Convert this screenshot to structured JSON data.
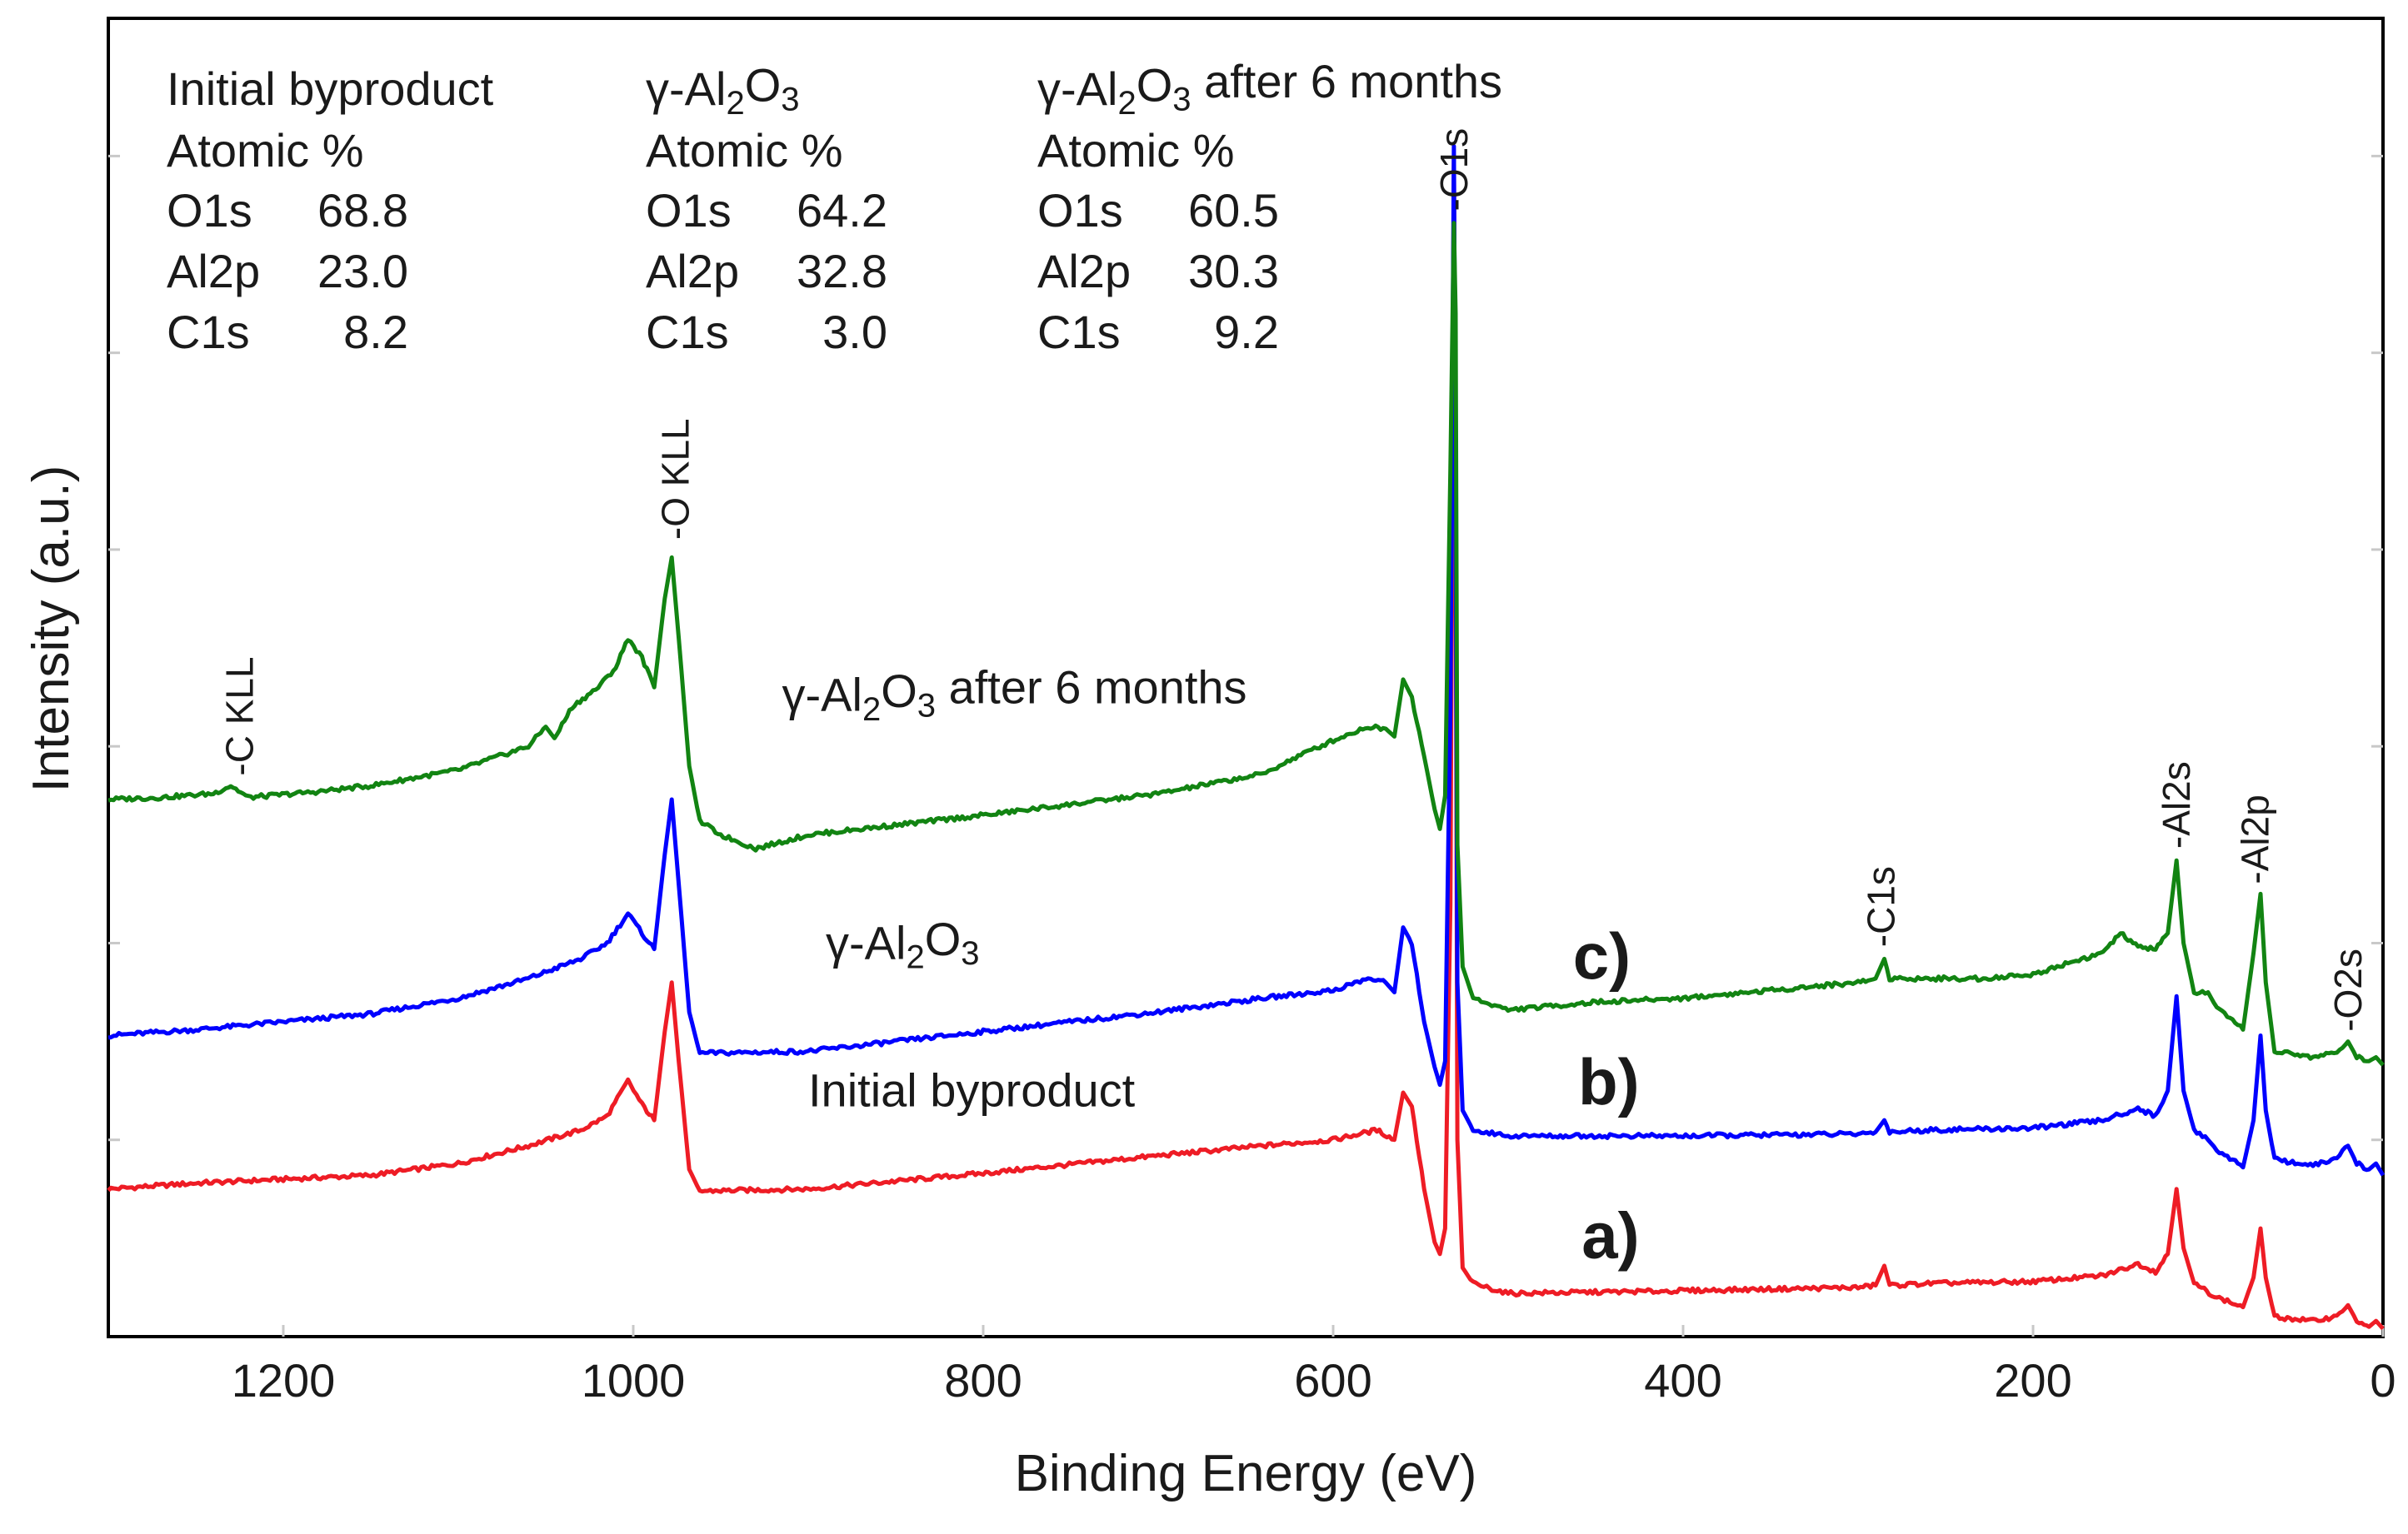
{
  "chart_data": {
    "type": "line",
    "title": "",
    "xlabel": "Binding Energy (eV)",
    "ylabel": "Intensity (a.u.)",
    "xlim": [
      1300,
      0
    ],
    "ylim": [
      0,
      6.7
    ],
    "x_ticks": [
      {
        "value": 1200,
        "label": "1200"
      },
      {
        "value": 1000,
        "label": "1000"
      },
      {
        "value": 800,
        "label": "800"
      },
      {
        "value": 600,
        "label": "600"
      },
      {
        "value": 400,
        "label": "400"
      },
      {
        "value": 200,
        "label": "200"
      },
      {
        "value": 0,
        "label": "0"
      }
    ],
    "y_minor_ticks": [
      1,
      2,
      3,
      4,
      5,
      6
    ],
    "series": [
      {
        "name": "Initial byproduct",
        "marker": "a)",
        "color": "#ee1c25",
        "points": [
          [
            1300,
            0.75
          ],
          [
            1250,
            0.78
          ],
          [
            1200,
            0.8
          ],
          [
            1150,
            0.82
          ],
          [
            1100,
            0.88
          ],
          [
            1060,
            0.97
          ],
          [
            1030,
            1.05
          ],
          [
            1015,
            1.12
          ],
          [
            1003,
            1.3
          ],
          [
            995,
            1.18
          ],
          [
            988,
            1.1
          ],
          [
            982,
            1.55
          ],
          [
            978,
            1.8
          ],
          [
            974,
            1.4
          ],
          [
            968,
            0.85
          ],
          [
            962,
            0.74
          ],
          [
            900,
            0.75
          ],
          [
            800,
            0.83
          ],
          [
            700,
            0.92
          ],
          [
            640,
            0.97
          ],
          [
            600,
            1.0
          ],
          [
            575,
            1.05
          ],
          [
            565,
            1.0
          ],
          [
            560,
            1.24
          ],
          [
            555,
            1.17
          ],
          [
            548,
            0.75
          ],
          [
            542,
            0.48
          ],
          [
            539,
            0.42
          ],
          [
            536,
            0.55
          ],
          [
            533,
            2.2
          ],
          [
            531,
            6.0
          ],
          [
            530,
            4.2
          ],
          [
            529,
            1.0
          ],
          [
            526,
            0.35
          ],
          [
            520,
            0.27
          ],
          [
            500,
            0.22
          ],
          [
            420,
            0.23
          ],
          [
            300,
            0.25
          ],
          [
            290,
            0.26
          ],
          [
            285,
            0.36
          ],
          [
            282,
            0.26
          ],
          [
            260,
            0.27
          ],
          [
            200,
            0.28
          ],
          [
            160,
            0.31
          ],
          [
            140,
            0.37
          ],
          [
            130,
            0.33
          ],
          [
            123,
            0.42
          ],
          [
            118,
            0.75
          ],
          [
            114,
            0.45
          ],
          [
            108,
            0.27
          ],
          [
            95,
            0.2
          ],
          [
            80,
            0.15
          ],
          [
            74,
            0.3
          ],
          [
            70,
            0.55
          ],
          [
            67,
            0.3
          ],
          [
            62,
            0.1
          ],
          [
            40,
            0.08
          ],
          [
            28,
            0.1
          ],
          [
            20,
            0.16
          ],
          [
            15,
            0.08
          ],
          [
            8,
            0.05
          ],
          [
            4,
            0.08
          ],
          [
            0,
            0.04
          ]
        ]
      },
      {
        "name": "γ-Al2O3",
        "marker": "b)",
        "color": "#0000ff",
        "points": [
          [
            1300,
            1.53
          ],
          [
            1250,
            1.56
          ],
          [
            1200,
            1.6
          ],
          [
            1150,
            1.64
          ],
          [
            1100,
            1.72
          ],
          [
            1060,
            1.82
          ],
          [
            1030,
            1.92
          ],
          [
            1015,
            2.0
          ],
          [
            1003,
            2.15
          ],
          [
            995,
            2.05
          ],
          [
            988,
            1.97
          ],
          [
            982,
            2.45
          ],
          [
            978,
            2.73
          ],
          [
            974,
            2.3
          ],
          [
            968,
            1.65
          ],
          [
            962,
            1.44
          ],
          [
            900,
            1.45
          ],
          [
            800,
            1.55
          ],
          [
            700,
            1.65
          ],
          [
            640,
            1.72
          ],
          [
            600,
            1.76
          ],
          [
            580,
            1.82
          ],
          [
            570,
            1.8
          ],
          [
            565,
            1.75
          ],
          [
            560,
            2.08
          ],
          [
            555,
            2.0
          ],
          [
            548,
            1.6
          ],
          [
            542,
            1.37
          ],
          [
            539,
            1.28
          ],
          [
            536,
            1.4
          ],
          [
            533,
            3.2
          ],
          [
            531,
            6.05
          ],
          [
            530,
            4.3
          ],
          [
            529,
            1.8
          ],
          [
            526,
            1.15
          ],
          [
            520,
            1.05
          ],
          [
            500,
            1.02
          ],
          [
            400,
            1.02
          ],
          [
            300,
            1.03
          ],
          [
            290,
            1.04
          ],
          [
            285,
            1.1
          ],
          [
            282,
            1.04
          ],
          [
            260,
            1.05
          ],
          [
            200,
            1.06
          ],
          [
            160,
            1.1
          ],
          [
            140,
            1.16
          ],
          [
            130,
            1.12
          ],
          [
            123,
            1.25
          ],
          [
            118,
            1.73
          ],
          [
            114,
            1.25
          ],
          [
            108,
            1.05
          ],
          [
            100,
            1.0
          ],
          [
            95,
            0.95
          ],
          [
            80,
            0.86
          ],
          [
            74,
            1.1
          ],
          [
            70,
            1.53
          ],
          [
            67,
            1.15
          ],
          [
            62,
            0.9
          ],
          [
            40,
            0.87
          ],
          [
            28,
            0.9
          ],
          [
            20,
            0.97
          ],
          [
            15,
            0.88
          ],
          [
            8,
            0.85
          ],
          [
            4,
            0.88
          ],
          [
            0,
            0.82
          ]
        ]
      },
      {
        "name": "γ-Al2O3 after 6 months",
        "marker": "c)",
        "color": "#128412",
        "points": [
          [
            1300,
            2.73
          ],
          [
            1270,
            2.74
          ],
          [
            1240,
            2.76
          ],
          [
            1230,
            2.8
          ],
          [
            1220,
            2.74
          ],
          [
            1180,
            2.77
          ],
          [
            1150,
            2.8
          ],
          [
            1100,
            2.88
          ],
          [
            1060,
            3.0
          ],
          [
            1050,
            3.1
          ],
          [
            1045,
            3.04
          ],
          [
            1035,
            3.2
          ],
          [
            1020,
            3.3
          ],
          [
            1010,
            3.4
          ],
          [
            1003,
            3.55
          ],
          [
            995,
            3.45
          ],
          [
            988,
            3.3
          ],
          [
            982,
            3.75
          ],
          [
            978,
            3.96
          ],
          [
            974,
            3.55
          ],
          [
            968,
            2.9
          ],
          [
            962,
            2.62
          ],
          [
            950,
            2.55
          ],
          [
            930,
            2.48
          ],
          [
            900,
            2.55
          ],
          [
            800,
            2.65
          ],
          [
            700,
            2.76
          ],
          [
            640,
            2.86
          ],
          [
            620,
            2.95
          ],
          [
            600,
            3.03
          ],
          [
            580,
            3.1
          ],
          [
            570,
            3.09
          ],
          [
            565,
            3.05
          ],
          [
            560,
            3.34
          ],
          [
            555,
            3.25
          ],
          [
            548,
            2.95
          ],
          [
            542,
            2.68
          ],
          [
            539,
            2.58
          ],
          [
            536,
            2.75
          ],
          [
            533,
            4.4
          ],
          [
            531,
            5.66
          ],
          [
            530,
            5.2
          ],
          [
            529,
            2.5
          ],
          [
            526,
            1.88
          ],
          [
            520,
            1.72
          ],
          [
            500,
            1.66
          ],
          [
            450,
            1.7
          ],
          [
            400,
            1.72
          ],
          [
            300,
            1.8
          ],
          [
            290,
            1.82
          ],
          [
            285,
            1.92
          ],
          [
            282,
            1.82
          ],
          [
            260,
            1.82
          ],
          [
            230,
            1.82
          ],
          [
            200,
            1.84
          ],
          [
            180,
            1.9
          ],
          [
            160,
            1.95
          ],
          [
            150,
            2.05
          ],
          [
            140,
            1.98
          ],
          [
            130,
            1.97
          ],
          [
            123,
            2.05
          ],
          [
            118,
            2.42
          ],
          [
            114,
            2.0
          ],
          [
            108,
            1.75
          ],
          [
            100,
            1.75
          ],
          [
            95,
            1.67
          ],
          [
            80,
            1.56
          ],
          [
            74,
            1.95
          ],
          [
            70,
            2.25
          ],
          [
            67,
            1.8
          ],
          [
            62,
            1.45
          ],
          [
            40,
            1.42
          ],
          [
            28,
            1.44
          ],
          [
            20,
            1.5
          ],
          [
            15,
            1.42
          ],
          [
            8,
            1.4
          ],
          [
            4,
            1.42
          ],
          [
            0,
            1.38
          ]
        ]
      }
    ],
    "info_blocks": [
      {
        "title": "Initial byproduct",
        "subtitle": "Atomic %",
        "rows": [
          {
            "name": "O1s",
            "value": "68.8"
          },
          {
            "name": "Al2p",
            "value": "23.0"
          },
          {
            "name": "C1s",
            "value": "8.2"
          }
        ]
      },
      {
        "title": "γ-Al2O3",
        "subtitle": "Atomic %",
        "rows": [
          {
            "name": "O1s",
            "value": "64.2"
          },
          {
            "name": "Al2p",
            "value": "32.8"
          },
          {
            "name": "C1s",
            "value": "3.0"
          }
        ]
      },
      {
        "title": "γ-Al2O3 after 6 months",
        "subtitle": "Atomic %",
        "rows": [
          {
            "name": "O1s",
            "value": "60.5"
          },
          {
            "name": "Al2p",
            "value": "30.3"
          },
          {
            "name": "C1s",
            "value": "9.2"
          }
        ]
      }
    ],
    "peak_labels": [
      {
        "text": "-C KLL",
        "x": 1225,
        "y": 2.85
      },
      {
        "text": "-O KLL",
        "x": 976,
        "y": 4.05
      },
      {
        "text": "-O1s",
        "x": 531,
        "y": 5.72
      },
      {
        "text": "-C1s",
        "x": 287,
        "y": 1.98
      },
      {
        "text": "-Al2s",
        "x": 118,
        "y": 2.48
      },
      {
        "text": "-Al2p",
        "x": 73,
        "y": 2.3
      },
      {
        "text": "-O2s",
        "x": 20,
        "y": 1.55
      }
    ],
    "curve_labels": [
      {
        "text": "γ-Al2O3 after 6 months",
        "x": 915,
        "y": 3.18
      },
      {
        "text": "γ-Al2O3",
        "x": 890,
        "y": 1.92
      },
      {
        "text": "Initial byproduct",
        "x": 900,
        "y": 1.17
      }
    ],
    "markers": [
      {
        "text": "c)",
        "x": 463,
        "y": 1.82
      },
      {
        "text": "b)",
        "x": 460,
        "y": 1.18
      },
      {
        "text": "a)",
        "x": 458,
        "y": 0.4
      }
    ]
  }
}
